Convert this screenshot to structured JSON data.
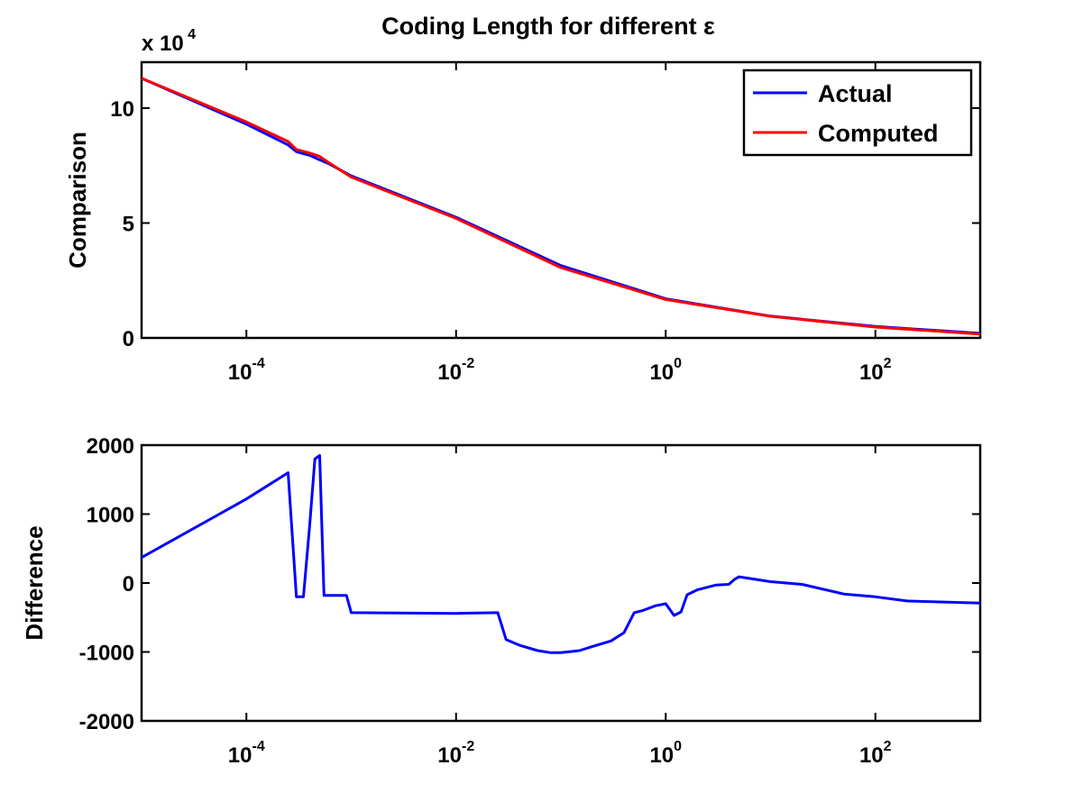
{
  "chart_data": [
    {
      "type": "line",
      "title": "Coding Length for different ε",
      "ylabel": "Comparison",
      "xlabel": "",
      "xscale": "log",
      "xlim": [
        1e-05,
        1000
      ],
      "ylim": [
        0,
        120000
      ],
      "y_multiplier_label": "x 10",
      "y_multiplier_exponent": "4",
      "yticks": [
        0,
        50000,
        100000
      ],
      "ytick_labels": [
        "0",
        "5",
        "10"
      ],
      "xticks": [
        0.0001,
        0.01,
        1,
        100
      ],
      "xtick_bases": [
        "10",
        "10",
        "10",
        "10"
      ],
      "xtick_exponents": [
        "-4",
        "-2",
        "0",
        "2"
      ],
      "legend": "top-right",
      "colors": {
        "Actual": "#0000ff",
        "Computed": "#ff0000"
      },
      "x": [
        1e-05,
        0.0001,
        0.00025,
        0.0003,
        0.0004,
        0.0005,
        0.0006,
        0.001,
        0.01,
        0.1,
        1,
        10,
        100,
        1000
      ],
      "series": [
        {
          "name": "Actual",
          "values": [
            113000,
            93000,
            84000,
            81000,
            79500,
            77500,
            76000,
            70500,
            52500,
            31500,
            17000,
            9500,
            5000,
            2000
          ]
        },
        {
          "name": "Computed",
          "values": [
            113000,
            94000,
            85500,
            82000,
            80500,
            79000,
            76500,
            70000,
            52000,
            30600,
            16700,
            9400,
            4700,
            1700
          ]
        }
      ]
    },
    {
      "type": "line",
      "title": "",
      "ylabel": "Difference",
      "xlabel": "",
      "xscale": "log",
      "xlim": [
        1e-05,
        1000
      ],
      "ylim": [
        -2000,
        2000
      ],
      "yticks": [
        -2000,
        -1000,
        0,
        1000,
        2000
      ],
      "ytick_labels": [
        "-2000",
        "-1000",
        "0",
        "1000",
        "2000"
      ],
      "xticks": [
        0.0001,
        0.01,
        1,
        100
      ],
      "xtick_bases": [
        "10",
        "10",
        "10",
        "10"
      ],
      "xtick_exponents": [
        "-4",
        "-2",
        "0",
        "2"
      ],
      "colors": {
        "line": "#0000ff"
      },
      "series": [
        {
          "x": [
            1e-05,
            0.0001,
            0.00025,
            0.0003,
            0.00035,
            0.0004,
            0.00045,
            0.0005,
            0.00055,
            0.00065,
            0.0009,
            0.001,
            0.01,
            0.025,
            0.03,
            0.04,
            0.06,
            0.08,
            0.1,
            0.15,
            0.2,
            0.3,
            0.4,
            0.5,
            0.6,
            0.8,
            1.0,
            1.2,
            1.4,
            1.6,
            2.0,
            3.0,
            4.0,
            4.5,
            5.0,
            10,
            20,
            50,
            100,
            200,
            1000
          ],
          "values": [
            370,
            1220,
            1600,
            -200,
            -200,
            800,
            1800,
            1850,
            -180,
            -180,
            -180,
            -430,
            -440,
            -430,
            -820,
            -900,
            -980,
            -1010,
            -1010,
            -980,
            -920,
            -840,
            -720,
            -430,
            -400,
            -330,
            -300,
            -470,
            -420,
            -170,
            -100,
            -30,
            -20,
            50,
            90,
            20,
            -20,
            -160,
            -200,
            -260,
            -290
          ]
        }
      ]
    }
  ]
}
